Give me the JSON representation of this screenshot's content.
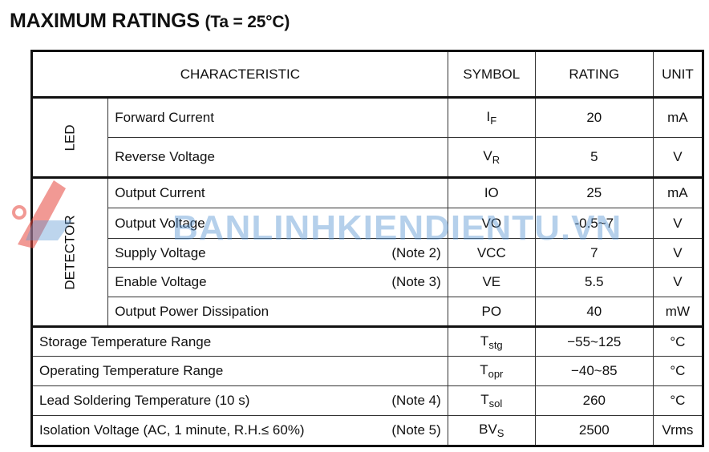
{
  "title": "MAXIMUM RATINGS",
  "condition": "(Ta = 25°C)",
  "headers": {
    "characteristic": "CHARACTERISTIC",
    "symbol": "SYMBOL",
    "rating": "RATING",
    "unit": "UNIT"
  },
  "groups": {
    "led": "LED",
    "detector": "DETECTOR"
  },
  "rows": [
    {
      "name": "Forward Current",
      "note": "",
      "sym": "I",
      "sub": "F",
      "rating": "20",
      "unit": "mA"
    },
    {
      "name": "Reverse Voltage",
      "note": "",
      "sym": "V",
      "sub": "R",
      "rating": "5",
      "unit": "V"
    },
    {
      "name": "Output Current",
      "note": "",
      "sym": "IO",
      "sub": "",
      "rating": "25",
      "unit": "mA"
    },
    {
      "name": "Output Voltage",
      "note": "",
      "sym": "VO",
      "sub": "",
      "rating": "-0.5~7",
      "unit": "V"
    },
    {
      "name": "Supply Voltage",
      "note": "(Note 2)",
      "sym": "VCC",
      "sub": "",
      "rating": "7",
      "unit": "V"
    },
    {
      "name": "Enable Voltage",
      "note": "(Note 3)",
      "sym": "VE",
      "sub": "",
      "rating": "5.5",
      "unit": "V"
    },
    {
      "name": "Output Power Dissipation",
      "note": "",
      "sym": "PO",
      "sub": "",
      "rating": "40",
      "unit": "mW"
    },
    {
      "name": "Storage Temperature Range",
      "note": "",
      "sym": "T",
      "sub": "stg",
      "rating": "−55~125",
      "unit": "°C"
    },
    {
      "name": "Operating Temperature Range",
      "note": "",
      "sym": "T",
      "sub": "opr",
      "rating": "−40~85",
      "unit": "°C"
    },
    {
      "name": "Lead Soldering Temperature (10 s)",
      "note": "(Note 4)",
      "sym": "T",
      "sub": "sol",
      "rating": "260",
      "unit": "°C"
    },
    {
      "name": "Isolation Voltage (AC, 1 minute, R.H.≤ 60%)",
      "note": "(Note 5)",
      "sym": "BV",
      "sub": "S",
      "rating": "2500",
      "unit": "Vrms"
    }
  ],
  "watermark": "BANLINHKIENDIENTU.VN"
}
